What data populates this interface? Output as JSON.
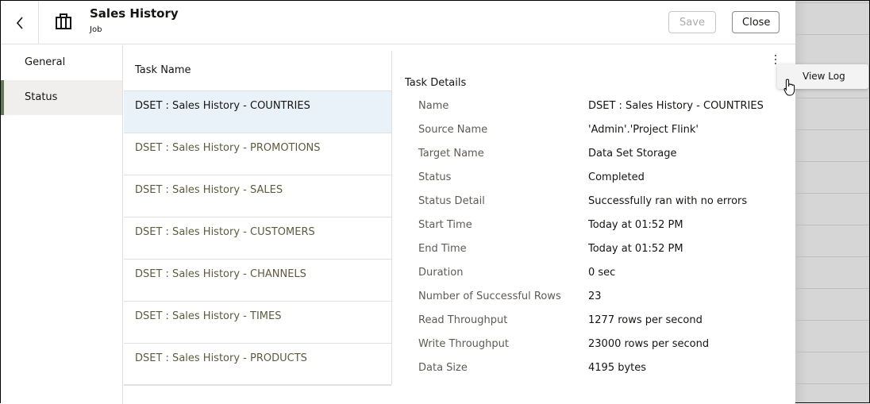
{
  "header": {
    "title": "Sales History",
    "subtitle": "Job",
    "save_label": "Save",
    "close_label": "Close",
    "back_icon": "chevron-left-icon",
    "job_icon": "briefcase-icon"
  },
  "nav": {
    "items": [
      {
        "label": "General",
        "active": false
      },
      {
        "label": "Status",
        "active": true
      }
    ]
  },
  "tasks": {
    "header": "Task Name",
    "items": [
      "DSET : Sales History - COUNTRIES",
      "DSET : Sales History - PROMOTIONS",
      "DSET : Sales History - SALES",
      "DSET : Sales History - CUSTOMERS",
      "DSET : Sales History - CHANNELS",
      "DSET : Sales History - TIMES",
      "DSET : Sales History - PRODUCTS"
    ],
    "selected": 0
  },
  "details": {
    "title": "Task Details",
    "rows": [
      {
        "label": "Name",
        "value": "DSET : Sales History - COUNTRIES"
      },
      {
        "label": "Source Name",
        "value": "'Admin'.'Project Flink'"
      },
      {
        "label": "Target Name",
        "value": "Data Set Storage"
      },
      {
        "label": "Status",
        "value": "Completed"
      },
      {
        "label": "Status Detail",
        "value": "Successfully ran with no errors"
      },
      {
        "label": "Start Time",
        "value": "Today at 01:52 PM"
      },
      {
        "label": "End Time",
        "value": "Today at 01:52 PM"
      },
      {
        "label": "Duration",
        "value": "0 sec"
      },
      {
        "label": "Number of Successful Rows",
        "value": "23"
      },
      {
        "label": "Read Throughput",
        "value": "1277 rows per second"
      },
      {
        "label": "Write Throughput",
        "value": "23000 rows per second"
      },
      {
        "label": "Data Size",
        "value": "4195 bytes"
      }
    ]
  },
  "menu": {
    "items": [
      "View Log"
    ]
  },
  "colors": {
    "accent": "#5f7d4f",
    "selected_row": "#e8f2f8",
    "task_text": "#5d5b3e"
  }
}
